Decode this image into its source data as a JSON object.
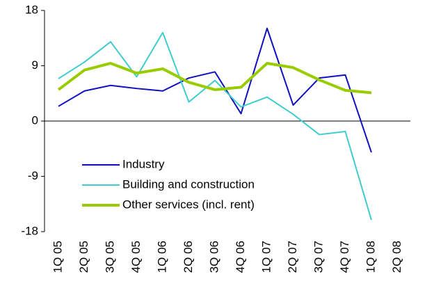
{
  "chart_data": {
    "type": "line",
    "categories": [
      "1Q 05",
      "2Q 05",
      "3Q 05",
      "4Q 05",
      "1Q 06",
      "2Q 06",
      "3Q 06",
      "4Q 06",
      "1Q 07",
      "2Q 07",
      "3Q 07",
      "4Q 07",
      "1Q 08",
      "2Q 08"
    ],
    "series": [
      {
        "name": "Industry",
        "color": "#1010c0",
        "width": 2,
        "values": [
          2.4,
          4.9,
          5.8,
          5.3,
          4.9,
          7.0,
          8.0,
          1.2,
          15.1,
          2.6,
          7.0,
          7.5,
          -5.1,
          null
        ]
      },
      {
        "name": "Building and construction",
        "color": "#3fcccc",
        "width": 2,
        "values": [
          6.9,
          9.6,
          12.9,
          7.2,
          14.4,
          3.1,
          6.6,
          2.3,
          3.9,
          1.1,
          -2.2,
          -1.7,
          -16.1,
          null
        ]
      },
      {
        "name": "Other services (incl. rent)",
        "color": "#99cc00",
        "width": 4,
        "values": [
          5.1,
          8.3,
          9.4,
          7.8,
          8.5,
          6.3,
          5.1,
          5.5,
          9.4,
          8.7,
          6.7,
          5.0,
          4.6,
          null
        ]
      }
    ],
    "ylim": [
      -18,
      18
    ],
    "yticks": [
      -18,
      -9,
      0,
      9,
      18
    ],
    "grid": false,
    "legend": "lower-left"
  }
}
